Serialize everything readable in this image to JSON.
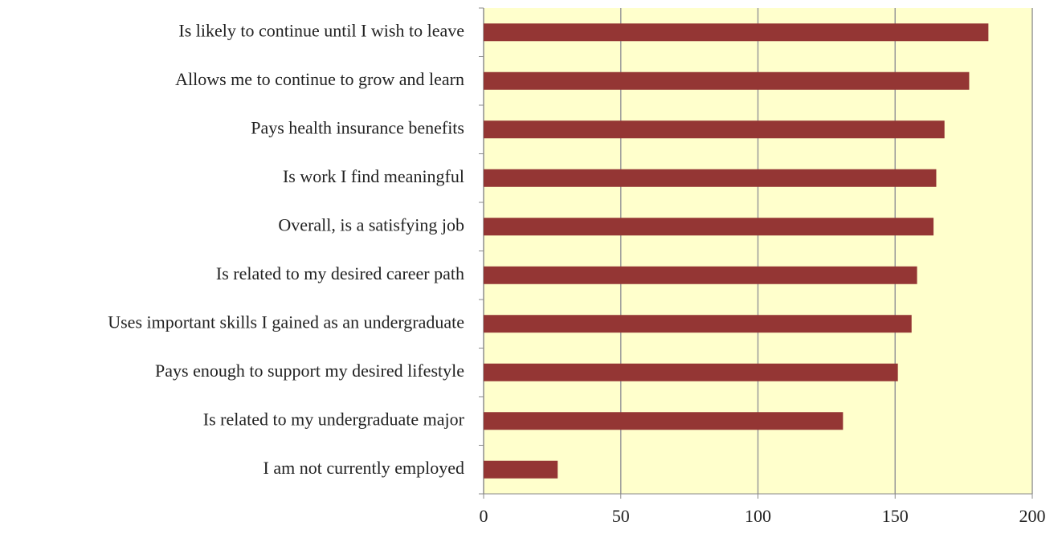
{
  "chart_data": {
    "type": "bar",
    "orientation": "horizontal",
    "categories": [
      "Is likely to continue until I wish to leave",
      "Allows me to continue to grow and learn",
      "Pays health insurance benefits",
      "Is work I find meaningful",
      "Overall, is a satisfying job",
      "Is related to my desired career path",
      "Uses important skills I gained as an undergraduate",
      "Pays enough to support my desired lifestyle",
      "Is related to my undergraduate major",
      "I am not currently employed"
    ],
    "values": [
      184,
      177,
      168,
      165,
      164,
      158,
      156,
      151,
      131,
      27
    ],
    "color": "#943634",
    "background": "#ffffcc",
    "xlim": [
      0,
      200
    ],
    "xticks": [
      0,
      50,
      100,
      150,
      200
    ],
    "grid": true
  }
}
